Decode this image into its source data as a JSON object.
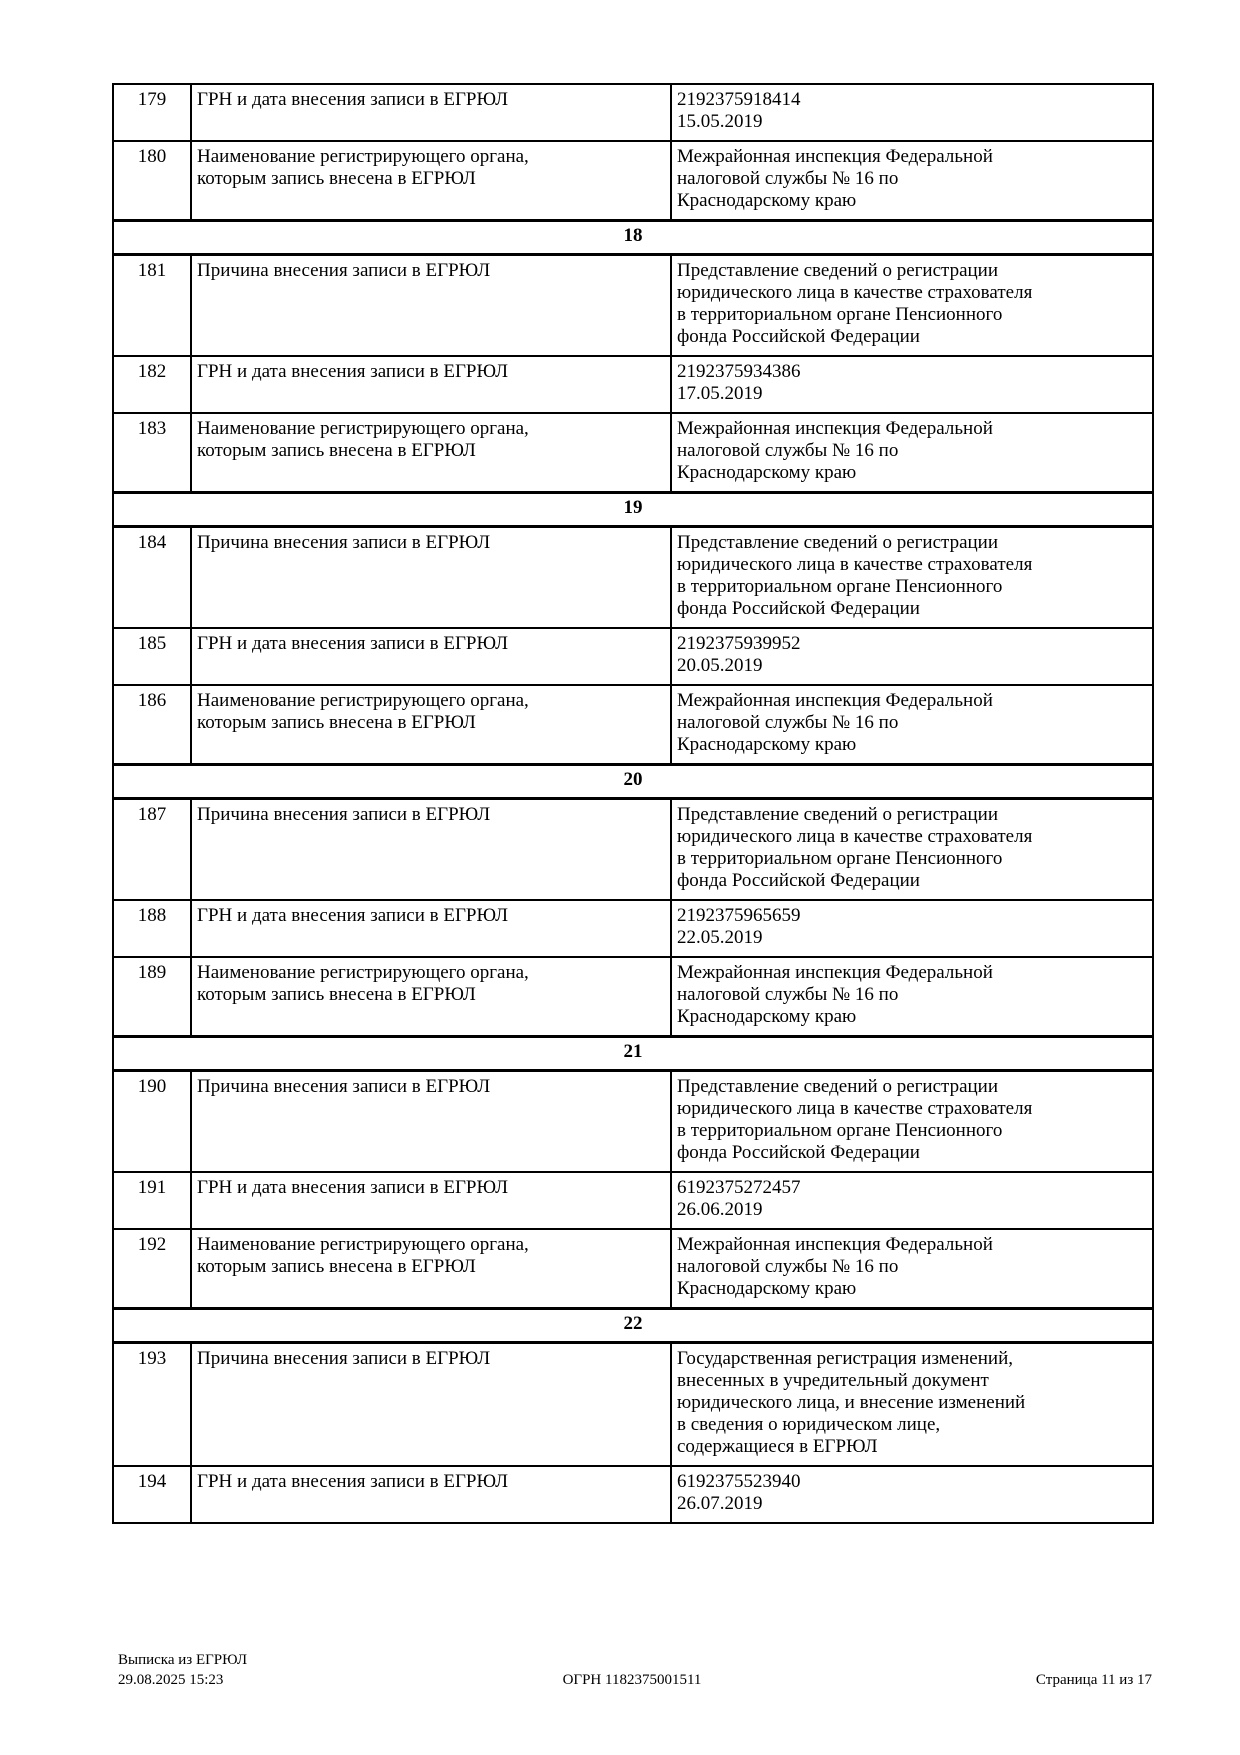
{
  "table": {
    "rows": [
      {
        "type": "entry",
        "num": "179",
        "label": [
          "ГРН и дата внесения записи в ЕГРЮЛ"
        ],
        "value": [
          "2192375918414",
          "15.05.2019"
        ]
      },
      {
        "type": "entry",
        "num": "180",
        "label": [
          "Наименование регистрирующего органа,",
          "которым запись внесена в ЕГРЮЛ"
        ],
        "value": [
          "Межрайонная инспекция Федеральной",
          "налоговой службы № 16 по",
          "Краснодарскому краю"
        ]
      },
      {
        "type": "section",
        "title": "18"
      },
      {
        "type": "entry",
        "num": "181",
        "label": [
          "Причина внесения записи в ЕГРЮЛ"
        ],
        "value": [
          "Представление сведений о регистрации",
          "юридического лица в качестве страхователя",
          "в территориальном органе Пенсионного",
          "фонда Российской Федерации"
        ]
      },
      {
        "type": "entry",
        "num": "182",
        "label": [
          "ГРН и дата внесения записи в ЕГРЮЛ"
        ],
        "value": [
          "2192375934386",
          "17.05.2019"
        ]
      },
      {
        "type": "entry",
        "num": "183",
        "label": [
          "Наименование регистрирующего органа,",
          "которым запись внесена в ЕГРЮЛ"
        ],
        "value": [
          "Межрайонная инспекция Федеральной",
          "налоговой службы № 16 по",
          "Краснодарскому краю"
        ]
      },
      {
        "type": "section",
        "title": "19"
      },
      {
        "type": "entry",
        "num": "184",
        "label": [
          "Причина внесения записи в ЕГРЮЛ"
        ],
        "value": [
          "Представление сведений о регистрации",
          "юридического лица в качестве страхователя",
          "в территориальном органе Пенсионного",
          "фонда Российской Федерации"
        ]
      },
      {
        "type": "entry",
        "num": "185",
        "label": [
          "ГРН и дата внесения записи в ЕГРЮЛ"
        ],
        "value": [
          "2192375939952",
          "20.05.2019"
        ]
      },
      {
        "type": "entry",
        "num": "186",
        "label": [
          "Наименование регистрирующего органа,",
          "которым запись внесена в ЕГРЮЛ"
        ],
        "value": [
          "Межрайонная инспекция Федеральной",
          "налоговой службы № 16 по",
          "Краснодарскому краю"
        ]
      },
      {
        "type": "section",
        "title": "20"
      },
      {
        "type": "entry",
        "num": "187",
        "label": [
          "Причина внесения записи в ЕГРЮЛ"
        ],
        "value": [
          "Представление сведений о регистрации",
          "юридического лица в качестве страхователя",
          "в территориальном органе Пенсионного",
          "фонда Российской Федерации"
        ]
      },
      {
        "type": "entry",
        "num": "188",
        "label": [
          "ГРН и дата внесения записи в ЕГРЮЛ"
        ],
        "value": [
          "2192375965659",
          "22.05.2019"
        ]
      },
      {
        "type": "entry",
        "num": "189",
        "label": [
          "Наименование регистрирующего органа,",
          "которым запись внесена в ЕГРЮЛ"
        ],
        "value": [
          "Межрайонная инспекция Федеральной",
          "налоговой службы № 16 по",
          "Краснодарскому краю"
        ]
      },
      {
        "type": "section",
        "title": "21"
      },
      {
        "type": "entry",
        "num": "190",
        "label": [
          "Причина внесения записи в ЕГРЮЛ"
        ],
        "value": [
          "Представление сведений о регистрации",
          "юридического лица в качестве страхователя",
          "в территориальном органе Пенсионного",
          "фонда Российской Федерации"
        ]
      },
      {
        "type": "entry",
        "num": "191",
        "label": [
          "ГРН и дата внесения записи в ЕГРЮЛ"
        ],
        "value": [
          "6192375272457",
          "26.06.2019"
        ]
      },
      {
        "type": "entry",
        "num": "192",
        "label": [
          "Наименование регистрирующего органа,",
          "которым запись внесена в ЕГРЮЛ"
        ],
        "value": [
          "Межрайонная инспекция Федеральной",
          "налоговой службы № 16 по",
          "Краснодарскому краю"
        ]
      },
      {
        "type": "section",
        "title": "22"
      },
      {
        "type": "entry",
        "num": "193",
        "label": [
          "Причина внесения записи в ЕГРЮЛ"
        ],
        "value": [
          "Государственная регистрация изменений,",
          "внесенных в учредительный документ",
          "юридического лица, и внесение изменений",
          "в сведения о юридическом лице,",
          "содержащиеся в ЕГРЮЛ"
        ]
      },
      {
        "type": "entry",
        "num": "194",
        "label": [
          "ГРН и дата внесения записи в ЕГРЮЛ"
        ],
        "value": [
          "6192375523940",
          "26.07.2019"
        ]
      }
    ]
  },
  "footer": {
    "doc_title": "Выписка из ЕГРЮЛ",
    "datetime": "29.08.2025 15:23",
    "ogrn": "ОГРН 1182375001511",
    "page": "Страница 11 из 17"
  }
}
